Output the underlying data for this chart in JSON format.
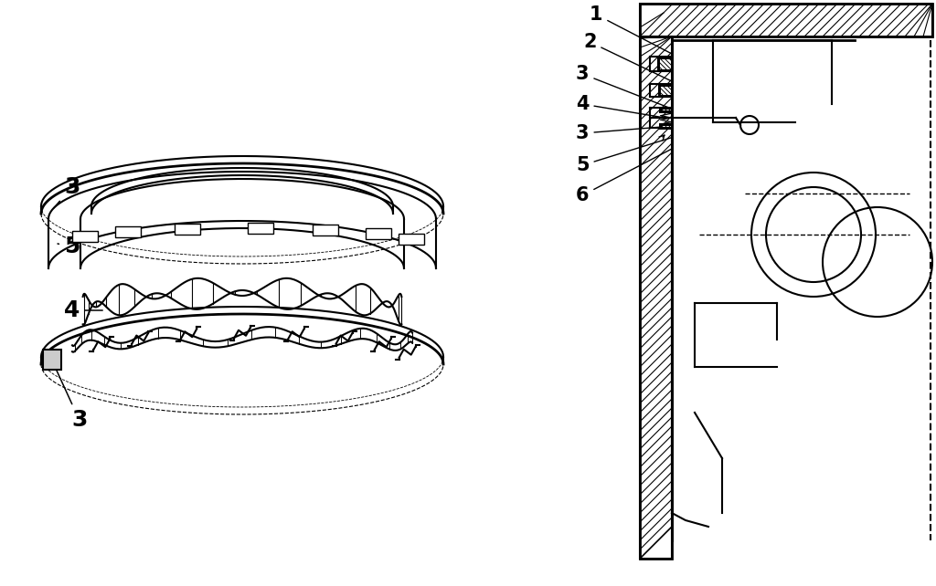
{
  "bg_color": "#ffffff",
  "line_color": "#000000",
  "fig_width": 10.24,
  "fig_height": 6.42
}
